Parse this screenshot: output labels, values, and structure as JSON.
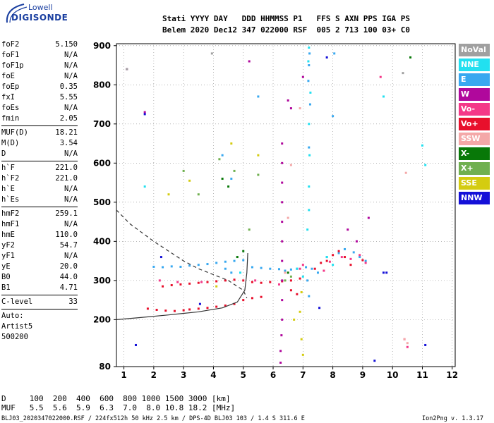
{
  "logo": {
    "line1": "Lowell",
    "line2": "DIGISONDE"
  },
  "header": {
    "line1": "Stati YYYY DAY   DDD HHMMSS P1   FFS S AXN PPS IGA PS",
    "line2": "Belem 2020 Dec12 347 022000 RSF  005 2 713 100 03+ C0"
  },
  "params_group1": [
    {
      "label": "foF2",
      "value": "5.150"
    },
    {
      "label": "foF1",
      "value": "N/A"
    },
    {
      "label": "foF1p",
      "value": "N/A"
    },
    {
      "label": "foE",
      "value": "N/A"
    },
    {
      "label": "foEp",
      "value": "0.35"
    },
    {
      "label": "fxI",
      "value": "5.55"
    },
    {
      "label": "foEs",
      "value": "N/A"
    },
    {
      "label": "fmin",
      "value": "2.05"
    }
  ],
  "params_group2": [
    {
      "label": "MUF(D)",
      "value": "18.21"
    },
    {
      "label": "M(D)",
      "value": "3.54"
    },
    {
      "label": "D",
      "value": "N/A"
    }
  ],
  "params_group3": [
    {
      "label": "h`F",
      "value": "221.0"
    },
    {
      "label": "h`F2",
      "value": "221.0"
    },
    {
      "label": "h`E",
      "value": "N/A"
    },
    {
      "label": "h`Es",
      "value": "N/A"
    }
  ],
  "params_group4": [
    {
      "label": "hmF2",
      "value": "259.1"
    },
    {
      "label": "hmF1",
      "value": "N/A"
    },
    {
      "label": "hmE",
      "value": "110.0"
    },
    {
      "label": "yF2",
      "value": "54.7"
    },
    {
      "label": "yF1",
      "value": "N/A"
    },
    {
      "label": "yE",
      "value": "20.0"
    },
    {
      "label": "B0",
      "value": "44.0"
    },
    {
      "label": "B1",
      "value": "4.71"
    }
  ],
  "params_group5": [
    {
      "label": "C-level",
      "value": "33"
    }
  ],
  "auto": {
    "line1": "Auto:",
    "line2": "Artist5",
    "line3": "500200"
  },
  "legend": [
    {
      "label": "NoVal",
      "color": "#a0a0a0"
    },
    {
      "label": "NNE",
      "color": "#22e0f0"
    },
    {
      "label": "E",
      "color": "#38a8f0"
    },
    {
      "label": "W",
      "color": "#b0089c"
    },
    {
      "label": "Vo-",
      "color": "#f43888"
    },
    {
      "label": "Vo+",
      "color": "#e8102c"
    },
    {
      "label": "SSW",
      "color": "#f4a8a8"
    },
    {
      "label": "X-",
      "color": "#087808"
    },
    {
      "label": "X+",
      "color": "#70b050"
    },
    {
      "label": "SSE",
      "color": "#d4cc10"
    },
    {
      "label": "NNW",
      "color": "#1410d8"
    }
  ],
  "footer": {
    "d_line": "D     100  200  400  600  800 1000 1500 3000 [km]",
    "muf_line": "MUF   5.5  5.6  5.9  6.3  7.0  8.0 10.8 18.2 [MHz]",
    "file_line": "BLJ03_2020347022000.RSF / 224fx512h 50 kHz 2.5 km / DPS-4D BLJ03 103 / 1.4 S 311.6 E",
    "version": "Ion2Png v. 1.3.17"
  },
  "chart_data": {
    "type": "scatter",
    "title": "",
    "xlabel": "",
    "ylabel": "",
    "xlim": [
      0.75,
      12.1
    ],
    "ylim": [
      80,
      905
    ],
    "x_ticks": [
      1,
      2,
      3,
      4,
      5,
      6,
      7,
      8,
      9,
      10,
      11,
      12
    ],
    "y_ticks": [
      80,
      200,
      300,
      400,
      500,
      600,
      700,
      800,
      900
    ],
    "grid": true,
    "grid_style": "dotted",
    "legend_position": "right",
    "series": [
      {
        "name": "E",
        "color": "#38a8f0",
        "type": "points",
        "points": [
          [
            2.0,
            335
          ],
          [
            2.3,
            334
          ],
          [
            2.6,
            336
          ],
          [
            2.9,
            335
          ],
          [
            3.2,
            338
          ],
          [
            3.5,
            340
          ],
          [
            3.8,
            342
          ],
          [
            4.1,
            345
          ],
          [
            4.4,
            348
          ],
          [
            4.7,
            350
          ],
          [
            5.0,
            352
          ],
          [
            5.3,
            334
          ],
          [
            5.6,
            332
          ],
          [
            5.9,
            330
          ],
          [
            6.2,
            329
          ],
          [
            6.4,
            325
          ],
          [
            6.6,
            328
          ],
          [
            6.8,
            330
          ],
          [
            7.1,
            334
          ],
          [
            7.3,
            330
          ],
          [
            7.5,
            320
          ],
          [
            7.8,
            360
          ],
          [
            8.2,
            370
          ],
          [
            8.4,
            380
          ],
          [
            8.7,
            372
          ],
          [
            8.9,
            360
          ],
          [
            9.1,
            350
          ],
          [
            7.18,
            810
          ],
          [
            7.2,
            850
          ],
          [
            7.22,
            880
          ],
          [
            7.24,
            750
          ],
          [
            7.2,
            640
          ],
          [
            7.15,
            300
          ],
          [
            7.2,
            260
          ],
          [
            8.05,
            880
          ],
          [
            8.0,
            720
          ],
          [
            4.3,
            620
          ],
          [
            4.6,
            560
          ],
          [
            5.5,
            770
          ],
          [
            4.4,
            330
          ],
          [
            4.6,
            320
          ]
        ]
      },
      {
        "name": "NNE",
        "color": "#22e0f0",
        "type": "points",
        "points": [
          [
            7.2,
            895
          ],
          [
            7.18,
            860
          ],
          [
            7.25,
            780
          ],
          [
            7.2,
            700
          ],
          [
            7.22,
            620
          ],
          [
            7.2,
            540
          ],
          [
            7.2,
            480
          ],
          [
            7.15,
            430
          ],
          [
            6.8,
            330
          ],
          [
            7.0,
            310
          ],
          [
            4.9,
            320
          ],
          [
            7.8,
            360
          ],
          [
            8.0,
            340
          ],
          [
            9.7,
            770
          ],
          [
            11.0,
            645
          ],
          [
            11.1,
            595
          ],
          [
            1.7,
            540
          ]
        ]
      },
      {
        "name": "Vo+",
        "color": "#e8102c",
        "type": "points",
        "points": [
          [
            1.8,
            228
          ],
          [
            2.1,
            225
          ],
          [
            2.4,
            223
          ],
          [
            2.7,
            222
          ],
          [
            3.0,
            224
          ],
          [
            3.2,
            226
          ],
          [
            3.5,
            228
          ],
          [
            3.8,
            230
          ],
          [
            4.1,
            233
          ],
          [
            4.4,
            236
          ],
          [
            4.7,
            240
          ],
          [
            5.0,
            250
          ],
          [
            5.3,
            255
          ],
          [
            5.6,
            258
          ],
          [
            2.3,
            285
          ],
          [
            2.6,
            288
          ],
          [
            2.9,
            290
          ],
          [
            3.2,
            292
          ],
          [
            3.5,
            294
          ],
          [
            3.8,
            296
          ],
          [
            4.1,
            298
          ],
          [
            4.4,
            300
          ],
          [
            4.7,
            302
          ],
          [
            5.0,
            300
          ],
          [
            5.3,
            296
          ],
          [
            5.6,
            294
          ],
          [
            5.9,
            296
          ],
          [
            6.3,
            298
          ],
          [
            6.6,
            300
          ],
          [
            6.9,
            305
          ],
          [
            7.4,
            330
          ],
          [
            7.6,
            345
          ],
          [
            7.8,
            350
          ],
          [
            8.0,
            365
          ],
          [
            8.2,
            375
          ],
          [
            8.4,
            360
          ],
          [
            8.6,
            340
          ],
          [
            9.0,
            352
          ],
          [
            6.6,
            275
          ],
          [
            6.8,
            265
          ]
        ]
      },
      {
        "name": "W",
        "color": "#b0089c",
        "type": "points",
        "points": [
          [
            6.3,
            650
          ],
          [
            6.3,
            600
          ],
          [
            6.3,
            550
          ],
          [
            6.3,
            500
          ],
          [
            6.3,
            450
          ],
          [
            6.3,
            400
          ],
          [
            6.3,
            350
          ],
          [
            6.3,
            300
          ],
          [
            6.3,
            250
          ],
          [
            6.3,
            200
          ],
          [
            6.28,
            160
          ],
          [
            6.25,
            120
          ],
          [
            6.25,
            90
          ],
          [
            6.5,
            760
          ],
          [
            6.6,
            740
          ],
          [
            5.2,
            860
          ],
          [
            7.0,
            820
          ],
          [
            8.5,
            430
          ],
          [
            8.8,
            400
          ],
          [
            9.2,
            460
          ],
          [
            1.1,
            840
          ],
          [
            1.7,
            730
          ]
        ]
      },
      {
        "name": "Vo-",
        "color": "#f43888",
        "type": "points",
        "points": [
          [
            6.9,
            330
          ],
          [
            7.0,
            340
          ],
          [
            7.7,
            325
          ],
          [
            7.9,
            348
          ],
          [
            8.3,
            360
          ],
          [
            8.6,
            355
          ],
          [
            8.9,
            365
          ],
          [
            9.1,
            345
          ],
          [
            2.2,
            300
          ],
          [
            2.8,
            296
          ],
          [
            3.6,
            296
          ],
          [
            5.4,
            300
          ],
          [
            6.2,
            290
          ],
          [
            9.6,
            820
          ],
          [
            10.4,
            150
          ],
          [
            10.5,
            130
          ]
        ]
      },
      {
        "name": "SSW",
        "color": "#f4a8a8",
        "type": "points",
        "points": [
          [
            6.6,
            595
          ],
          [
            6.5,
            460
          ],
          [
            6.4,
            320
          ],
          [
            10.45,
            575
          ],
          [
            10.4,
            150
          ],
          [
            10.5,
            140
          ],
          [
            6.9,
            740
          ]
        ]
      },
      {
        "name": "X-",
        "color": "#087808",
        "type": "points",
        "points": [
          [
            4.3,
            560
          ],
          [
            4.5,
            540
          ],
          [
            5.0,
            375
          ],
          [
            4.8,
            360
          ],
          [
            6.5,
            320
          ],
          [
            10.6,
            870
          ]
        ]
      },
      {
        "name": "X+",
        "color": "#70b050",
        "type": "points",
        "points": [
          [
            3.0,
            580
          ],
          [
            3.5,
            520
          ],
          [
            4.2,
            610
          ],
          [
            4.7,
            580
          ],
          [
            5.2,
            430
          ],
          [
            6.4,
            300
          ],
          [
            6.6,
            310
          ],
          [
            5.5,
            570
          ]
        ]
      },
      {
        "name": "SSE",
        "color": "#d4cc10",
        "type": "points",
        "points": [
          [
            6.95,
            270
          ],
          [
            6.9,
            220
          ],
          [
            6.95,
            150
          ],
          [
            7.0,
            110
          ],
          [
            4.6,
            650
          ],
          [
            5.5,
            620
          ],
          [
            6.7,
            200
          ],
          [
            2.5,
            520
          ],
          [
            3.2,
            555
          ],
          [
            4.1,
            285
          ]
        ]
      },
      {
        "name": "NNW",
        "color": "#1410d8",
        "type": "points",
        "points": [
          [
            2.25,
            360
          ],
          [
            1.4,
            135
          ],
          [
            1.7,
            725
          ],
          [
            7.8,
            870
          ],
          [
            7.55,
            230
          ],
          [
            9.4,
            95
          ],
          [
            9.8,
            320
          ],
          [
            11.1,
            135
          ],
          [
            9.7,
            320
          ],
          [
            3.55,
            240
          ]
        ]
      },
      {
        "name": "NoVal",
        "color": "#a0a0a0",
        "type": "points",
        "points": [
          [
            1.1,
            840
          ],
          [
            10.35,
            830
          ],
          [
            3.95,
            880
          ]
        ]
      }
    ],
    "curves": [
      {
        "style": "solid",
        "points": [
          [
            0.75,
            200
          ],
          [
            1.5,
            205
          ],
          [
            2.5,
            212
          ],
          [
            3.5,
            220
          ],
          [
            4.3,
            230
          ],
          [
            4.8,
            245
          ],
          [
            5.05,
            275
          ],
          [
            5.12,
            320
          ],
          [
            5.15,
            370
          ]
        ]
      },
      {
        "style": "dashed",
        "points": [
          [
            0.75,
            480
          ],
          [
            1.2,
            445
          ],
          [
            2.0,
            400
          ],
          [
            2.5,
            375
          ],
          [
            3.0,
            350
          ],
          [
            3.5,
            330
          ],
          [
            4.0,
            315
          ],
          [
            4.5,
            300
          ],
          [
            5.0,
            275
          ],
          [
            5.12,
            255
          ]
        ]
      }
    ]
  }
}
